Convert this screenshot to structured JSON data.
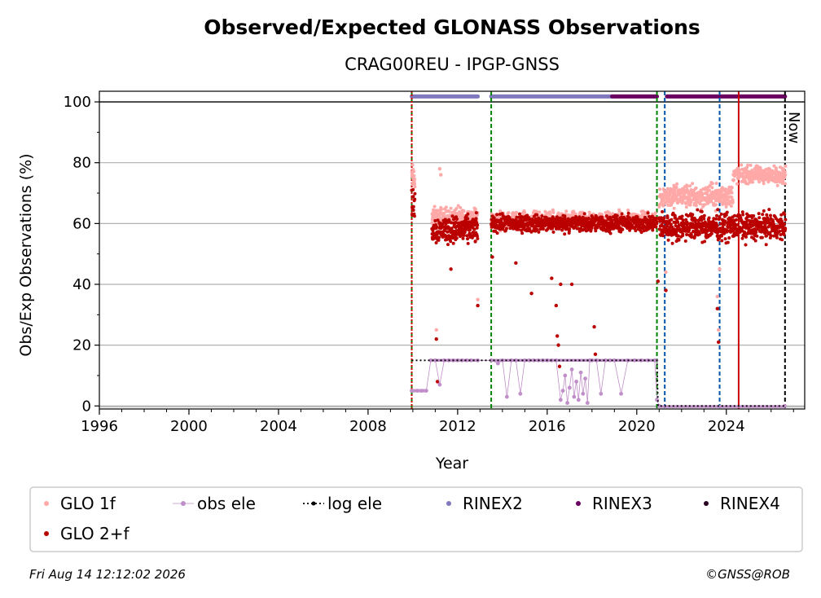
{
  "chart_data": {
    "type": "scatter",
    "title": "Observed/Expected GLONASS Observations",
    "subtitle": "CRAG00REU - IPGP-GNSS",
    "xlabel": "Year",
    "ylabel": "Obs/Exp Observations (%)",
    "xlim": [
      1996,
      2027.5
    ],
    "ylim": [
      -1,
      103.5
    ],
    "xticks": [
      "1996",
      "2000",
      "2004",
      "2008",
      "2012",
      "2016",
      "2020",
      "2024"
    ],
    "yticks": [
      "0",
      "20",
      "40",
      "60",
      "80",
      "100"
    ],
    "grid": "y",
    "now_label": "Now",
    "legend": {
      "placement": "bottom",
      "entries": [
        {
          "label": "GLO 1f",
          "color": "#ffa8a8",
          "marker": "dot"
        },
        {
          "label": "obs ele",
          "color": "#c08ec8",
          "marker": "dot-line"
        },
        {
          "label": "log ele",
          "color": "#000000",
          "marker": "dotted-line"
        },
        {
          "label": "RINEX2",
          "color": "#8078bc",
          "marker": "dot"
        },
        {
          "label": "RINEX3",
          "color": "#6a0060",
          "marker": "dot"
        },
        {
          "label": "RINEX4",
          "color": "#2a0020",
          "marker": "dot"
        },
        {
          "label": "GLO 2+f",
          "color": "#bb0000",
          "marker": "dot"
        }
      ]
    },
    "vertical_lines": [
      {
        "x": 2009.95,
        "color": "#008000",
        "style": "dashed"
      },
      {
        "x": 2009.95,
        "color": "#cc0000",
        "style": "dotted"
      },
      {
        "x": 2013.5,
        "color": "#008000",
        "style": "dashed"
      },
      {
        "x": 2020.9,
        "color": "#008000",
        "style": "dashed"
      },
      {
        "x": 2021.25,
        "color": "#0055aa",
        "style": "dashed"
      },
      {
        "x": 2023.7,
        "color": "#0055aa",
        "style": "dashed"
      },
      {
        "x": 2024.55,
        "color": "#cc0000",
        "style": "solid"
      },
      {
        "x": 2026.62,
        "color": "#000000",
        "style": "dashed"
      }
    ],
    "rinex_bars": [
      {
        "series": "RINEX2",
        "x": [
          2009.95,
          2012.9
        ],
        "y": 101.8
      },
      {
        "series": "RINEX2",
        "x": [
          2013.5,
          2018.9
        ],
        "y": 101.8
      },
      {
        "series": "RINEX3",
        "x": [
          2018.9,
          2020.9
        ],
        "y": 101.8
      },
      {
        "series": "RINEX3",
        "x": [
          2021.35,
          2026.62
        ],
        "y": 101.8
      }
    ],
    "series": [
      {
        "name": "GLO 1f",
        "color": "#ffa8a8",
        "segments": [
          {
            "x": [
              2009.95,
              2010.1
            ],
            "y_mean": 75,
            "y_spread": 4
          },
          {
            "x": [
              2010.85,
              2012.9
            ],
            "y_mean": 62,
            "y_spread": 3
          },
          {
            "x": [
              2013.5,
              2020.9
            ],
            "y_mean": 61,
            "y_spread": 2.5
          },
          {
            "x": [
              2021.0,
              2024.3
            ],
            "y_mean": 69,
            "y_spread": 3.5
          },
          {
            "x": [
              2024.3,
              2026.65
            ],
            "y_mean": 76,
            "y_spread": 2.5
          }
        ],
        "outliers": [
          [
            2011.05,
            25
          ],
          [
            2011.2,
            78
          ],
          [
            2011.25,
            76
          ],
          [
            2012.9,
            35
          ],
          [
            2021.3,
            44
          ],
          [
            2023.6,
            36
          ],
          [
            2023.65,
            25
          ],
          [
            2023.7,
            45
          ]
        ]
      },
      {
        "name": "GLO 2+f",
        "color": "#bb0000",
        "segments": [
          {
            "x": [
              2009.95,
              2010.1
            ],
            "y_mean": 66,
            "y_spread": 5
          },
          {
            "x": [
              2010.85,
              2012.9
            ],
            "y_mean": 58,
            "y_spread": 4
          },
          {
            "x": [
              2013.5,
              2020.9
            ],
            "y_mean": 60,
            "y_spread": 2.5
          },
          {
            "x": [
              2021.0,
              2026.65
            ],
            "y_mean": 59,
            "y_spread": 4
          }
        ],
        "outliers": [
          [
            2011.05,
            22
          ],
          [
            2011.1,
            8
          ],
          [
            2011.7,
            45
          ],
          [
            2012.9,
            33
          ],
          [
            2013.55,
            49
          ],
          [
            2014.6,
            47
          ],
          [
            2015.3,
            37
          ],
          [
            2016.2,
            42
          ],
          [
            2016.4,
            33
          ],
          [
            2016.45,
            23
          ],
          [
            2016.5,
            20
          ],
          [
            2016.55,
            13
          ],
          [
            2016.6,
            40
          ],
          [
            2017.1,
            40
          ],
          [
            2018.1,
            26
          ],
          [
            2018.15,
            17
          ],
          [
            2020.95,
            41
          ],
          [
            2021.3,
            38
          ],
          [
            2023.6,
            32
          ],
          [
            2023.65,
            21
          ]
        ]
      },
      {
        "name": "obs ele",
        "color": "#c08ec8",
        "points": [
          [
            2009.95,
            5
          ],
          [
            2010.2,
            5
          ],
          [
            2010.4,
            5
          ],
          [
            2010.6,
            5
          ],
          [
            2010.8,
            15
          ],
          [
            2011.0,
            15
          ],
          [
            2011.2,
            7
          ],
          [
            2011.4,
            15
          ],
          [
            2011.6,
            15
          ],
          [
            2011.8,
            15
          ],
          [
            2012.0,
            15
          ],
          [
            2012.2,
            15
          ],
          [
            2012.4,
            15
          ],
          [
            2012.6,
            15
          ],
          [
            2012.9,
            15
          ],
          [
            2013.5,
            15
          ],
          [
            2013.8,
            14
          ],
          [
            2014.0,
            15
          ],
          [
            2014.2,
            3
          ],
          [
            2014.4,
            15
          ],
          [
            2014.6,
            15
          ],
          [
            2014.8,
            4
          ],
          [
            2015.0,
            15
          ],
          [
            2015.2,
            15
          ],
          [
            2015.4,
            15
          ],
          [
            2015.6,
            15
          ],
          [
            2015.8,
            15
          ],
          [
            2016.0,
            15
          ],
          [
            2016.2,
            15
          ],
          [
            2016.4,
            15
          ],
          [
            2016.6,
            2
          ],
          [
            2016.7,
            5
          ],
          [
            2016.8,
            10
          ],
          [
            2016.9,
            1
          ],
          [
            2017.0,
            6
          ],
          [
            2017.1,
            12
          ],
          [
            2017.2,
            3
          ],
          [
            2017.3,
            8
          ],
          [
            2017.4,
            2
          ],
          [
            2017.5,
            11
          ],
          [
            2017.6,
            4
          ],
          [
            2017.7,
            9
          ],
          [
            2017.8,
            1
          ],
          [
            2017.9,
            15
          ],
          [
            2018.0,
            15
          ],
          [
            2018.2,
            15
          ],
          [
            2018.4,
            4
          ],
          [
            2018.6,
            15
          ],
          [
            2018.8,
            15
          ],
          [
            2019.0,
            15
          ],
          [
            2019.3,
            4
          ],
          [
            2019.6,
            15
          ],
          [
            2019.9,
            15
          ],
          [
            2020.2,
            15
          ],
          [
            2020.5,
            15
          ],
          [
            2020.8,
            15
          ],
          [
            2020.9,
            2
          ],
          [
            2021.0,
            0
          ],
          [
            2026.6,
            0
          ]
        ]
      },
      {
        "name": "log ele",
        "color": "#000000",
        "points": [
          [
            2009.95,
            15
          ],
          [
            2020.9,
            15
          ],
          [
            2020.95,
            0
          ],
          [
            2026.62,
            0
          ]
        ]
      }
    ]
  },
  "footer": {
    "timestamp": "Fri Aug 14 12:12:02 2026",
    "copyright": "©GNSS@ROB"
  }
}
